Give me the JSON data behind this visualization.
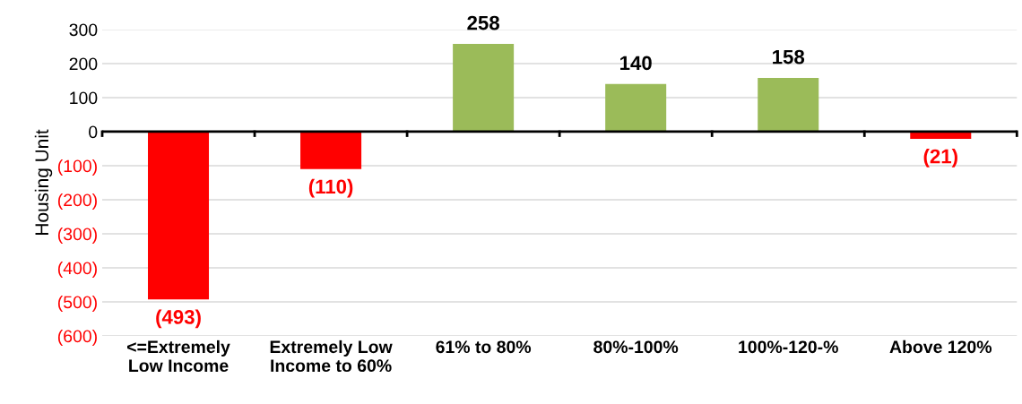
{
  "chart_data": {
    "type": "bar",
    "ylabel": "Housing Unit",
    "categories": [
      "<=Extremely\nLow Income",
      "Extremely Low\nIncome to 60%",
      "61% to 80%",
      "80%-100%",
      "100%-120-%",
      "Above 120%"
    ],
    "values": [
      -493,
      -110,
      258,
      140,
      158,
      -21
    ],
    "colors": [
      "#ff0000",
      "#ff0000",
      "#9bbb59",
      "#9bbb59",
      "#9bbb59",
      "#ff0000"
    ],
    "value_labels": [
      "(493)",
      "(110)",
      "258",
      "140",
      "158",
      "(21)"
    ],
    "ylim": [
      -600,
      300
    ],
    "yticks": [
      300,
      200,
      100,
      0,
      {
        "value": -100,
        "label": "(100)"
      },
      {
        "value": -200,
        "label": "(200)"
      },
      {
        "value": -300,
        "label": "(300)"
      },
      {
        "value": -400,
        "label": "(400)"
      },
      {
        "value": -500,
        "label": "(500)"
      },
      {
        "value": -600,
        "label": "(600)"
      }
    ],
    "grid": "y",
    "legend": false
  }
}
